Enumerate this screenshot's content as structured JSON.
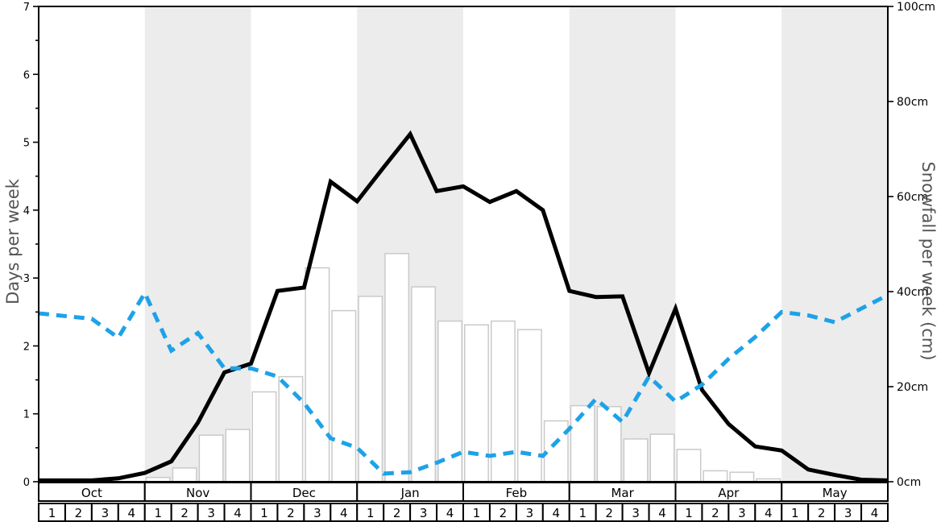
{
  "chart_data": {
    "type": "bar+line",
    "months": [
      "Oct",
      "Nov",
      "Dec",
      "Jan",
      "Feb",
      "Mar",
      "Apr",
      "May"
    ],
    "week_labels": [
      "1",
      "2",
      "3",
      "4"
    ],
    "shaded_months": [
      "Nov",
      "Jan",
      "Mar",
      "May"
    ],
    "grid": false,
    "legend": "none",
    "left_axis": {
      "label": "Days per week",
      "min": 0,
      "max": 7,
      "tick_step": 1,
      "minor_tick_step": 0.5,
      "tick_labels": [
        "0",
        "1",
        "2",
        "3",
        "4",
        "5",
        "6",
        "7"
      ]
    },
    "right_axis": {
      "label": "Snowfall per week (cm)",
      "min": 0,
      "max": 100,
      "tick_step": 20,
      "tick_labels": [
        "0cm",
        "20cm",
        "40cm",
        "60cm",
        "80cm",
        "100cm"
      ]
    },
    "series": [
      {
        "name": "snowfall-bars",
        "type": "bar",
        "axis": "right",
        "fill": "#ffffff",
        "border_color": "#c9c9c9",
        "values": [
          0,
          0,
          0,
          0,
          0.9,
          2.9,
          9.8,
          11.0,
          18.9,
          22.1,
          45.0,
          36.0,
          39.0,
          48.0,
          41.0,
          33.8,
          33.0,
          33.8,
          32.0,
          12.8,
          16.0,
          15.8,
          9.0,
          10.0,
          6.8,
          2.3,
          2.0,
          0.6,
          0,
          0,
          0,
          0
        ]
      },
      {
        "name": "black-solid-line",
        "type": "line",
        "line_style": "solid",
        "axis": "left",
        "color": "#000000",
        "values": [
          0.02,
          0.02,
          0.02,
          0.05,
          0.13,
          0.3,
          0.87,
          1.61,
          1.74,
          2.81,
          2.86,
          4.42,
          4.13,
          4.63,
          5.12,
          4.28,
          4.35,
          4.12,
          4.28,
          4.0,
          2.81,
          2.72,
          2.73,
          1.6,
          2.55,
          1.35,
          0.85,
          0.52,
          0.46,
          0.18,
          0.1,
          0.03
        ],
        "edge_value": 0.02
      },
      {
        "name": "blue-dashed-line",
        "type": "line",
        "line_style": "dashed",
        "axis": "left",
        "color": "#1da2e8",
        "values": [
          2.48,
          2.44,
          2.4,
          2.12,
          2.78,
          1.93,
          2.19,
          1.67,
          1.67,
          1.55,
          1.16,
          0.64,
          0.5,
          0.12,
          0.14,
          0.28,
          0.44,
          0.38,
          0.44,
          0.38,
          0.78,
          1.22,
          0.88,
          1.55,
          1.18,
          1.43,
          1.81,
          2.13,
          2.5,
          2.45,
          2.35,
          2.55
        ],
        "edge_value": 2.75
      }
    ],
    "colors": {
      "band": "#ececec",
      "axis_line": "#000000",
      "axis_title": "#555555",
      "tick_label": "#000000"
    }
  }
}
